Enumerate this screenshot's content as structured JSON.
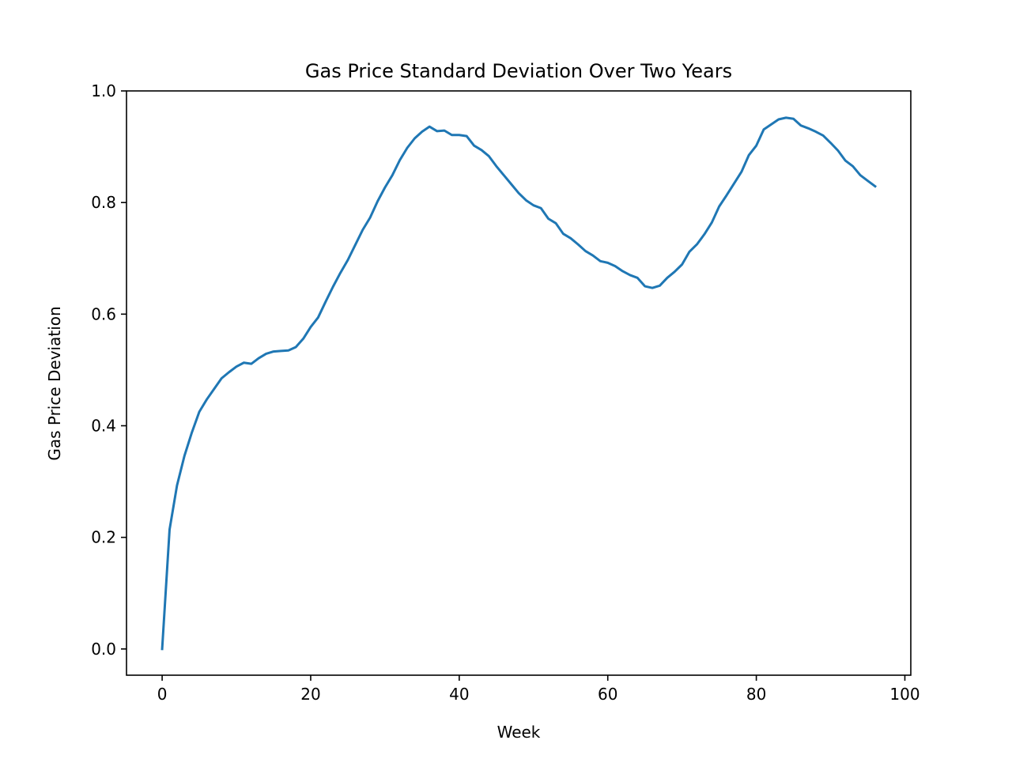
{
  "chart_data": {
    "type": "line",
    "title": "Gas Price Standard Deviation Over Two Years",
    "xlabel": "Week",
    "ylabel": "Gas Price Deviation",
    "xlim": [
      -4.8,
      100.8
    ],
    "ylim": [
      -0.047,
      1.0
    ],
    "xticks": [
      0,
      20,
      40,
      60,
      80,
      100
    ],
    "xtick_labels": [
      "0",
      "20",
      "40",
      "60",
      "80",
      "100"
    ],
    "yticks": [
      0.0,
      0.2,
      0.4,
      0.6,
      0.8,
      1.0
    ],
    "ytick_labels": [
      "0.0",
      "0.2",
      "0.4",
      "0.6",
      "0.8",
      "1.0"
    ],
    "grid": false,
    "legend": "none",
    "series": [
      {
        "color": "#1f77b4",
        "x": [
          0,
          1,
          2,
          3,
          4,
          5,
          6,
          7,
          8,
          9,
          10,
          11,
          12,
          13,
          14,
          15,
          16,
          17,
          18,
          19,
          20,
          21,
          22,
          23,
          24,
          25,
          26,
          27,
          28,
          29,
          30,
          31,
          32,
          33,
          34,
          35,
          36,
          37,
          38,
          39,
          40,
          41,
          42,
          43,
          44,
          45,
          46,
          47,
          48,
          49,
          50,
          51,
          52,
          53,
          54,
          55,
          56,
          57,
          58,
          59,
          60,
          61,
          62,
          63,
          64,
          65,
          66,
          67,
          68,
          69,
          70,
          71,
          72,
          73,
          74,
          75,
          76,
          77,
          78,
          79,
          80,
          81,
          82,
          83,
          84,
          85,
          86,
          87,
          88,
          89,
          90,
          91,
          92,
          93,
          94,
          95,
          96
        ],
        "values": [
          0.0,
          0.214,
          0.293,
          0.346,
          0.388,
          0.425,
          0.447,
          0.466,
          0.485,
          0.496,
          0.506,
          0.513,
          0.511,
          0.521,
          0.529,
          0.533,
          0.534,
          0.535,
          0.541,
          0.556,
          0.577,
          0.594,
          0.622,
          0.649,
          0.674,
          0.697,
          0.724,
          0.751,
          0.773,
          0.802,
          0.827,
          0.849,
          0.876,
          0.898,
          0.915,
          0.927,
          0.936,
          0.928,
          0.929,
          0.921,
          0.921,
          0.919,
          0.902,
          0.894,
          0.883,
          0.865,
          0.849,
          0.833,
          0.817,
          0.804,
          0.795,
          0.79,
          0.771,
          0.763,
          0.744,
          0.736,
          0.725,
          0.713,
          0.705,
          0.695,
          0.692,
          0.686,
          0.677,
          0.67,
          0.665,
          0.65,
          0.647,
          0.651,
          0.665,
          0.676,
          0.689,
          0.712,
          0.725,
          0.743,
          0.764,
          0.793,
          0.813,
          0.834,
          0.855,
          0.885,
          0.902,
          0.931,
          0.94,
          0.949,
          0.952,
          0.95,
          0.938,
          0.933,
          0.927,
          0.92,
          0.907,
          0.893,
          0.875,
          0.865,
          0.849,
          0.839,
          0.829
        ]
      }
    ]
  }
}
